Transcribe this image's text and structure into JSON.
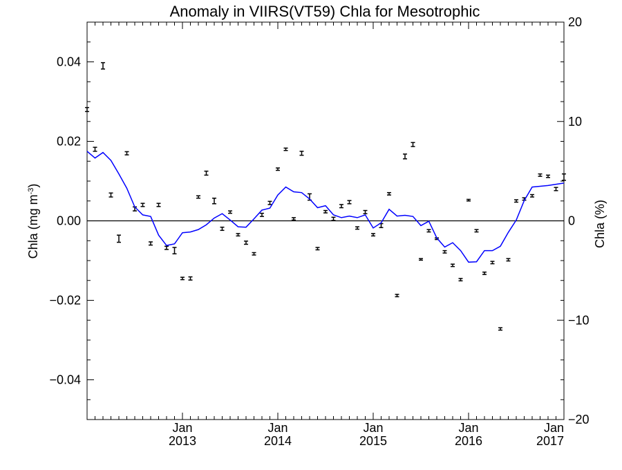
{
  "chart_data": {
    "type": "scatter",
    "title": "Anomaly in VIIRS(VT59) Chla for Mesotrophic",
    "ylabel_left_main": "Chla (mg m",
    "ylabel_left_sup": "-3",
    "ylabel_left_close": ")",
    "ylabel_right": "Chla (%)",
    "xlim": [
      "2012-01",
      "2017-01"
    ],
    "ylim_left": [
      -0.05,
      0.05
    ],
    "ylim_right": [
      -20,
      20
    ],
    "grid": false,
    "x_ticks": [
      {
        "month": 12,
        "line1": "Jan",
        "line2": "2013"
      },
      {
        "month": 24,
        "line1": "Jan",
        "line2": "2014"
      },
      {
        "month": 36,
        "line1": "Jan",
        "line2": "2015"
      },
      {
        "month": 48,
        "line1": "Jan",
        "line2": "2016"
      },
      {
        "month": 60,
        "line1": "Jan",
        "line2": "2017"
      }
    ],
    "y_ticks_left": [
      {
        "value": 0.04,
        "label": "0.04"
      },
      {
        "value": 0.02,
        "label": "0.02"
      },
      {
        "value": 0.0,
        "label": "0.00"
      },
      {
        "value": -0.02,
        "label": "−0.02"
      },
      {
        "value": -0.04,
        "label": "−0.04"
      }
    ],
    "y_ticks_right": [
      {
        "value": 20,
        "label": "20"
      },
      {
        "value": 10,
        "label": "10"
      },
      {
        "value": 0,
        "label": "0"
      },
      {
        "value": -10,
        "label": "−10"
      },
      {
        "value": -20,
        "label": "−20"
      }
    ],
    "series": [
      {
        "kind": "points_with_error_bars",
        "color": "#000000",
        "axis": "left",
        "x": [
          "2012-01",
          "2012-02",
          "2012-03",
          "2012-04",
          "2012-05",
          "2012-06",
          "2012-07",
          "2012-08",
          "2012-09",
          "2012-10",
          "2012-11",
          "2012-12",
          "2013-01",
          "2013-02",
          "2013-03",
          "2013-04",
          "2013-05",
          "2013-06",
          "2013-07",
          "2013-08",
          "2013-09",
          "2013-10",
          "2013-11",
          "2013-12",
          "2014-01",
          "2014-02",
          "2014-03",
          "2014-04",
          "2014-05",
          "2014-06",
          "2014-07",
          "2014-08",
          "2014-09",
          "2014-10",
          "2014-11",
          "2014-12",
          "2015-01",
          "2015-02",
          "2015-03",
          "2015-04",
          "2015-05",
          "2015-06",
          "2015-07",
          "2015-08",
          "2015-09",
          "2015-10",
          "2015-11",
          "2015-12",
          "2016-01",
          "2016-02",
          "2016-03",
          "2016-04",
          "2016-05",
          "2016-06",
          "2016-07",
          "2016-08",
          "2016-09",
          "2016-10",
          "2016-11",
          "2016-12",
          "2017-01"
        ],
        "y": [
          0.028,
          0.018,
          0.039,
          0.0065,
          -0.0045,
          0.017,
          0.003,
          0.004,
          -0.0057,
          0.004,
          -0.0068,
          -0.0075,
          -0.0145,
          -0.0145,
          0.006,
          0.012,
          0.005,
          -0.002,
          0.0022,
          -0.0035,
          -0.0055,
          -0.0083,
          0.0015,
          0.0045,
          0.013,
          0.018,
          0.0005,
          0.017,
          0.006,
          -0.007,
          0.0023,
          0.0005,
          0.0037,
          0.0047,
          -0.0018,
          0.0022,
          -0.0035,
          -0.0012,
          0.0068,
          -0.0188,
          0.0162,
          0.0192,
          -0.0097,
          -0.0025,
          -0.0045,
          -0.0078,
          -0.0112,
          -0.0148,
          0.0052,
          -0.0025,
          -0.0132,
          -0.0105,
          -0.0272,
          -0.0098,
          0.005,
          0.0055,
          0.0063,
          0.0115,
          0.0112,
          0.008,
          0.011
        ],
        "err": [
          0.0005,
          0.0005,
          0.0008,
          0.0005,
          0.0009,
          0.0004,
          0.0005,
          0.0004,
          0.0004,
          0.0004,
          0.0004,
          0.0008,
          0.0003,
          0.0004,
          0.0003,
          0.0005,
          0.0007,
          0.0004,
          0.0003,
          0.0003,
          0.0004,
          0.0003,
          0.0004,
          0.0004,
          0.0003,
          0.0003,
          0.0003,
          0.0005,
          0.0008,
          0.0003,
          0.0003,
          0.0004,
          0.0004,
          0.0004,
          0.0003,
          0.0004,
          0.0003,
          0.0005,
          0.0003,
          0.0003,
          0.0006,
          0.0005,
          0.0002,
          0.0003,
          0.0002,
          0.0003,
          0.0003,
          0.0003,
          0.0002,
          0.0003,
          0.0003,
          0.0003,
          0.0003,
          0.0003,
          0.0003,
          0.0003,
          0.0003,
          0.0003,
          0.0003,
          0.0004,
          0.0008
        ]
      },
      {
        "kind": "line",
        "color": "#0000ff",
        "axis": "left",
        "x": [
          "2012-01",
          "2012-02",
          "2012-03",
          "2012-04",
          "2012-05",
          "2012-06",
          "2012-07",
          "2012-08",
          "2012-09",
          "2012-10",
          "2012-11",
          "2012-12",
          "2013-01",
          "2013-02",
          "2013-03",
          "2013-04",
          "2013-05",
          "2013-06",
          "2013-07",
          "2013-08",
          "2013-09",
          "2013-10",
          "2013-11",
          "2013-12",
          "2014-01",
          "2014-02",
          "2014-03",
          "2014-04",
          "2014-05",
          "2014-06",
          "2014-07",
          "2014-08",
          "2014-09",
          "2014-10",
          "2014-11",
          "2014-12",
          "2015-01",
          "2015-02",
          "2015-03",
          "2015-04",
          "2015-05",
          "2015-06",
          "2015-07",
          "2015-08",
          "2015-09",
          "2015-10",
          "2015-11",
          "2015-12",
          "2016-01",
          "2016-02",
          "2016-03",
          "2016-04",
          "2016-05",
          "2016-06",
          "2016-07",
          "2016-08",
          "2016-09",
          "2016-10",
          "2016-11",
          "2016-12",
          "2017-01"
        ],
        "y": [
          0.0175,
          0.0158,
          0.0172,
          0.0152,
          0.0118,
          0.0082,
          0.0035,
          0.0015,
          0.0011,
          -0.0036,
          -0.0062,
          -0.0058,
          -0.003,
          -0.0028,
          -0.0022,
          -0.001,
          0.0007,
          0.0018,
          0.0002,
          -0.0015,
          -0.0016,
          0.0005,
          0.0027,
          0.0032,
          0.0065,
          0.0085,
          0.0073,
          0.0071,
          0.0055,
          0.0033,
          0.0038,
          0.0015,
          0.0008,
          0.0012,
          0.0008,
          0.0015,
          -0.0018,
          -0.0005,
          0.0029,
          0.0012,
          0.0014,
          0.0011,
          -0.0012,
          -0.0001,
          -0.0043,
          -0.0066,
          -0.0055,
          -0.0075,
          -0.0104,
          -0.0103,
          -0.0075,
          -0.0075,
          -0.0064,
          -0.0029,
          0.0002,
          0.0051,
          0.0085,
          0.0087,
          0.0089,
          0.0092,
          0.0095
        ]
      }
    ]
  }
}
